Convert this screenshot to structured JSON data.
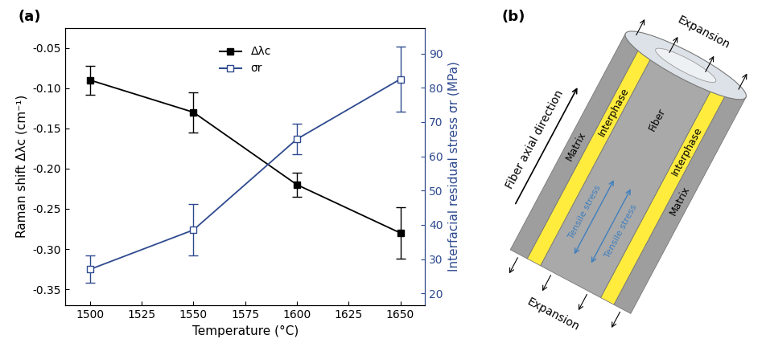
{
  "chart_data": {
    "type": "line",
    "title": "(a)",
    "x_label": "Temperature (°C)",
    "y_label": "Raman shift Δλc (cm⁻¹)",
    "y2_label": "Interfacial residual stress σr (MPa)",
    "x": [
      1500,
      1550,
      1600,
      1650
    ],
    "xlim": [
      1488,
      1662
    ],
    "xticks": [
      1500,
      1525,
      1550,
      1575,
      1600,
      1625,
      1650
    ],
    "ylim": [
      -0.37,
      -0.025
    ],
    "yticks": [
      -0.35,
      {
        "value": -0.3,
        "label": "-0.30"
      },
      -0.25,
      {
        "value": -0.2,
        "label": "-0.20"
      },
      -0.15,
      {
        "value": -0.1,
        "label": "-0.10"
      },
      -0.05
    ],
    "y2lim": [
      16.5,
      97.5
    ],
    "y2ticks": [
      20,
      30,
      40,
      50,
      60,
      70,
      80,
      90
    ],
    "legend": "upper center",
    "series": [
      {
        "name": "Δλc",
        "color": "#000000",
        "marker": "square",
        "line_style": "solid",
        "values": [
          -0.09,
          -0.13,
          -0.22,
          -0.28
        ],
        "errors": [
          0.018,
          0.025,
          0.015,
          0.032
        ]
      },
      {
        "name": "σr",
        "color": "#2e4a8f",
        "marker": "open square",
        "line_style": "solid",
        "axis": "y2",
        "values": [
          27,
          38.5,
          65,
          82.5
        ],
        "errors": [
          4,
          7.5,
          4.5,
          9.5
        ]
      }
    ]
  },
  "diagram": {
    "label": "(b)",
    "axis_label": "Fiber axial direction",
    "expansion": [
      "Expansion",
      "Expansion"
    ],
    "matrix": [
      "Matrix",
      "Matrix"
    ],
    "interphase": [
      "Interphase",
      "Interphase"
    ],
    "fiber": "Fiber",
    "stress": [
      "Tensile stress",
      "Tensile stress"
    ]
  }
}
